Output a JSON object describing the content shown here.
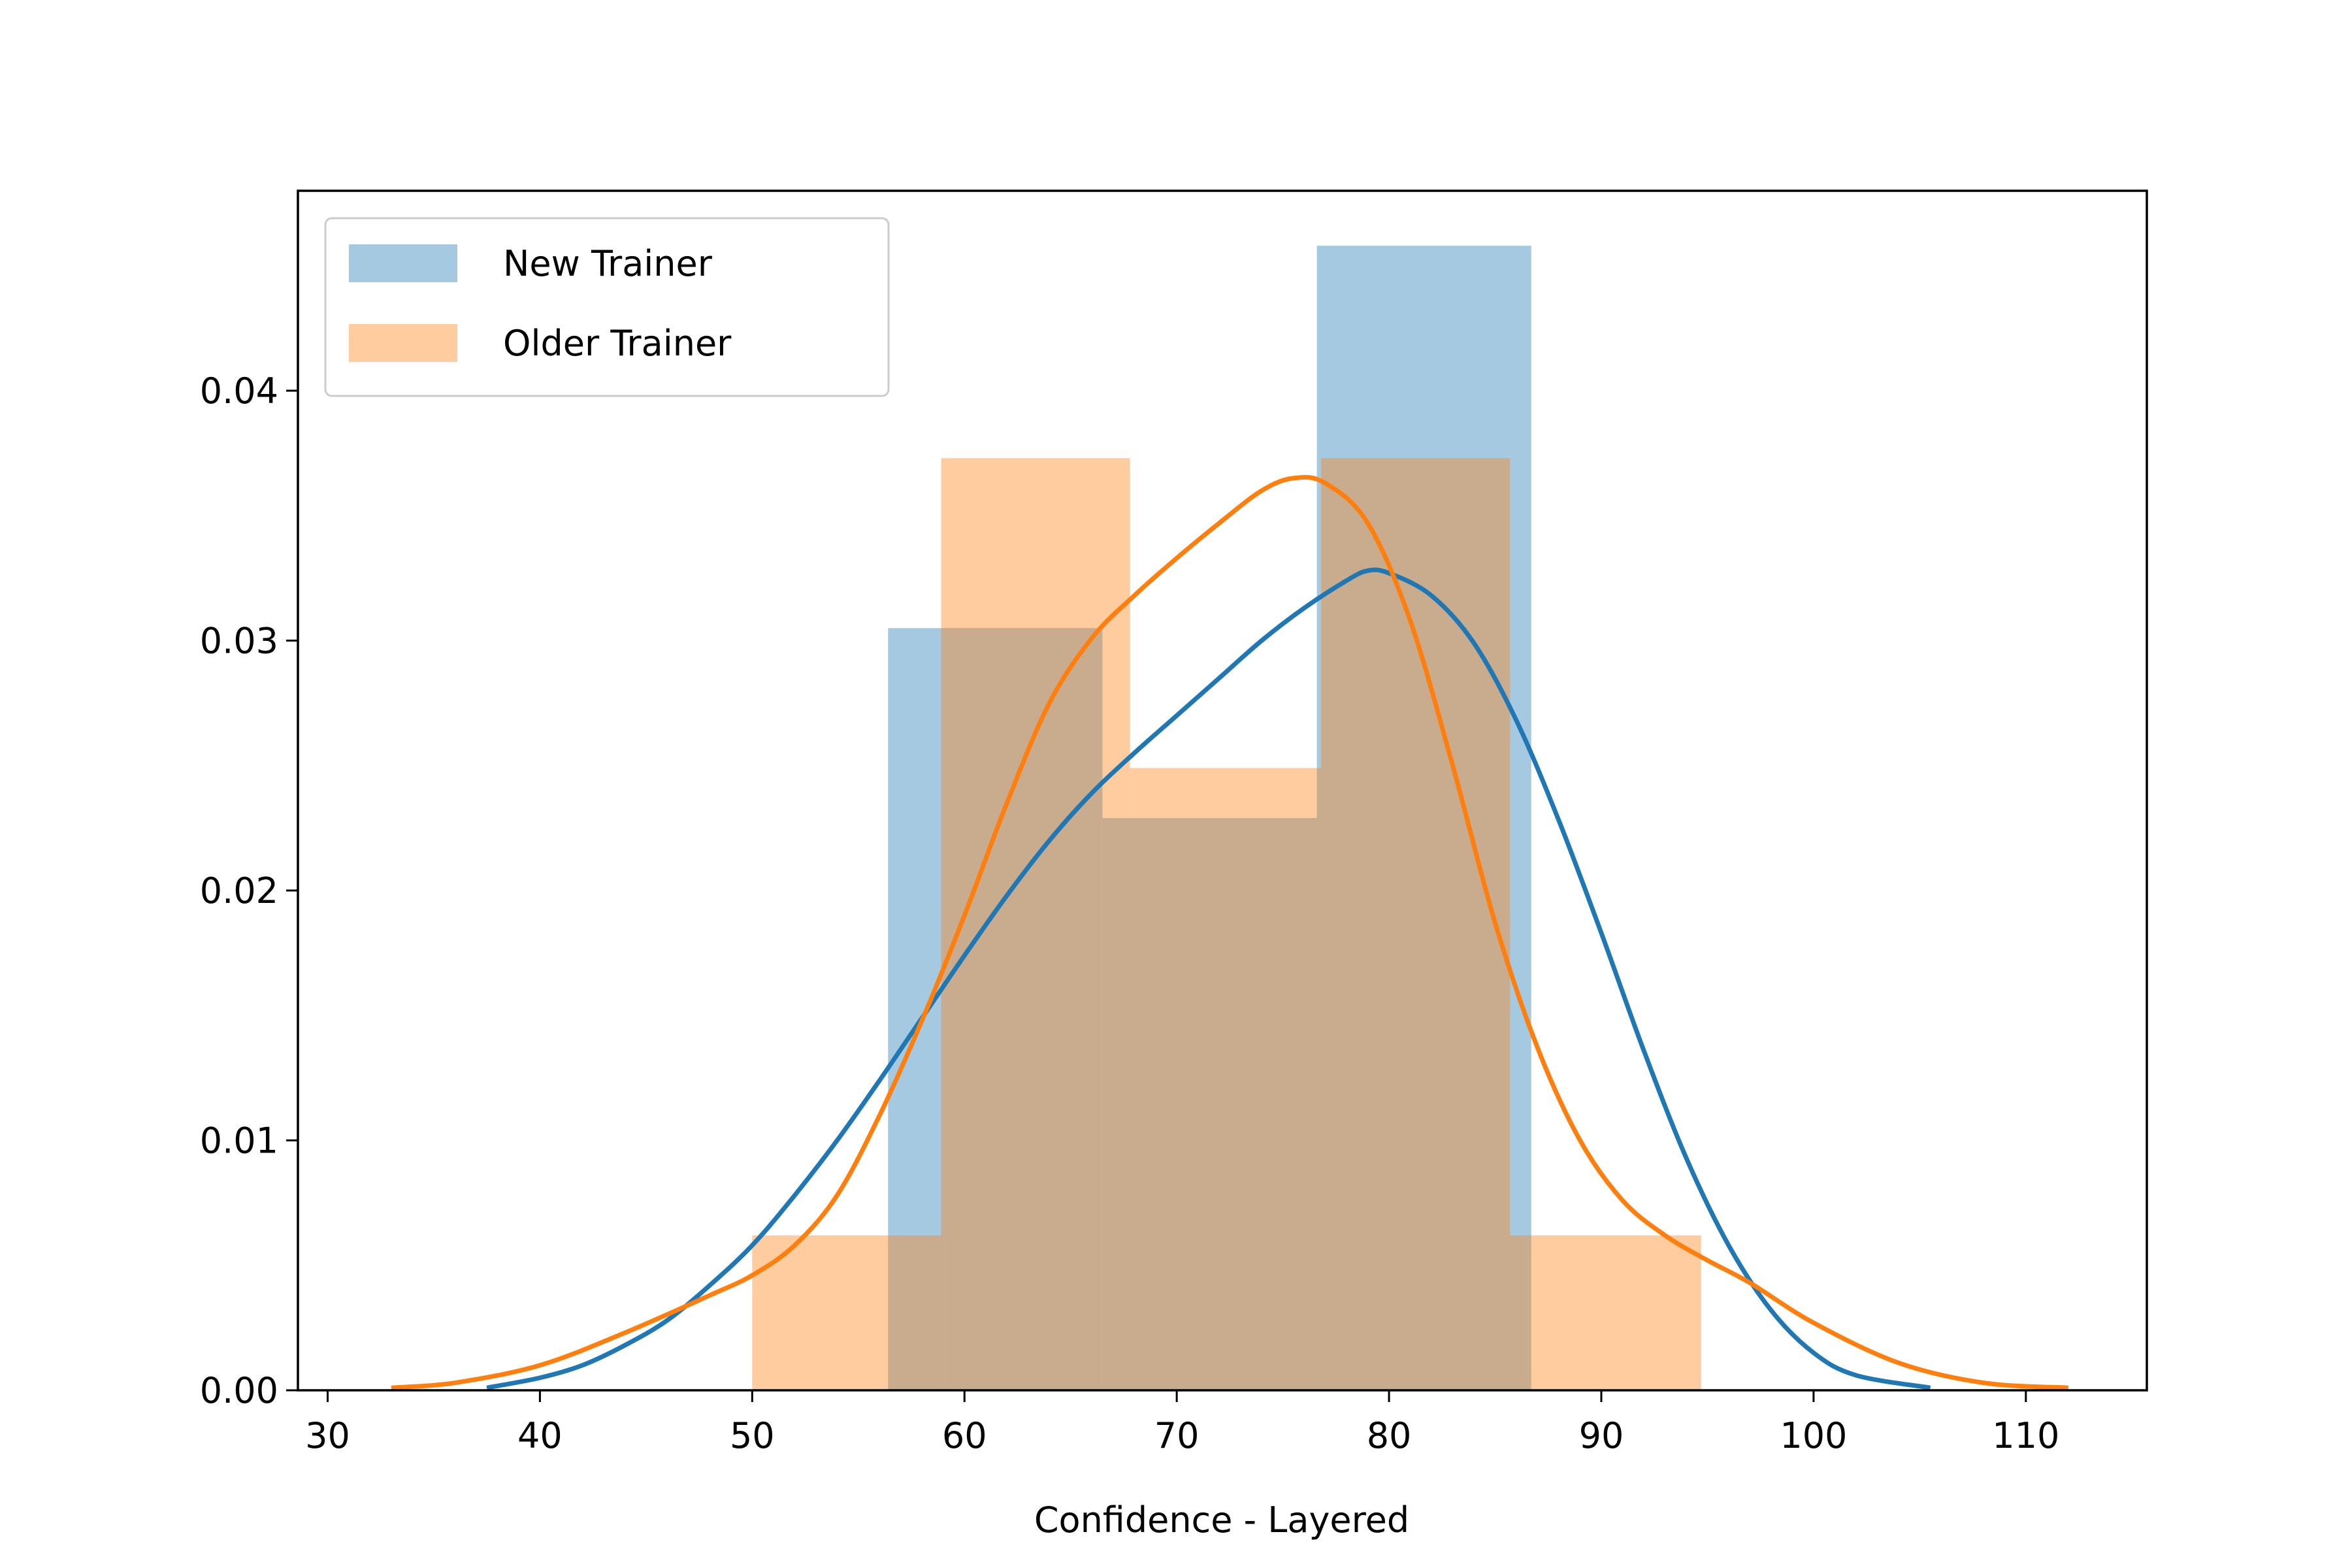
{
  "chart_data": {
    "type": "histogram",
    "title": "",
    "xlabel": "Confidence - Layered",
    "ylabel": "",
    "xlim": [
      28.6,
      115.7
    ],
    "ylim": [
      0,
      0.048
    ],
    "x_ticks": [
      30,
      40,
      50,
      60,
      70,
      80,
      90,
      100,
      110
    ],
    "y_ticks": [
      0.0,
      0.01,
      0.02,
      0.03,
      0.04
    ],
    "x_tick_labels": [
      "30",
      "40",
      "50",
      "60",
      "70",
      "80",
      "90",
      "100",
      "110"
    ],
    "y_tick_labels": [
      "0.00",
      "0.01",
      "0.02",
      "0.03",
      "0.04"
    ],
    "legend_position": "top-left",
    "grid": false,
    "series": [
      {
        "name": "New Trainer",
        "color": "#1f77b4",
        "bins": [
          {
            "x0": 56.4,
            "x1": 66.5,
            "density": 0.0305
          },
          {
            "x0": 66.5,
            "x1": 76.6,
            "density": 0.0229
          },
          {
            "x0": 76.6,
            "x1": 86.7,
            "density": 0.0458
          }
        ],
        "kde": [
          [
            37.5,
            0.0001
          ],
          [
            40,
            0.0005
          ],
          [
            42,
            0.001
          ],
          [
            44,
            0.0018
          ],
          [
            46,
            0.0028
          ],
          [
            48,
            0.0042
          ],
          [
            50,
            0.0058
          ],
          [
            52,
            0.0078
          ],
          [
            54,
            0.01
          ],
          [
            56,
            0.0124
          ],
          [
            58,
            0.0149
          ],
          [
            60,
            0.0174
          ],
          [
            62,
            0.0198
          ],
          [
            64,
            0.022
          ],
          [
            66,
            0.0239
          ],
          [
            68,
            0.0255
          ],
          [
            70,
            0.027
          ],
          [
            72,
            0.0285
          ],
          [
            74,
            0.03
          ],
          [
            76,
            0.0313
          ],
          [
            78,
            0.0324
          ],
          [
            79,
            0.0328
          ],
          [
            80,
            0.0327
          ],
          [
            82,
            0.0318
          ],
          [
            84,
            0.0299
          ],
          [
            86,
            0.0268
          ],
          [
            88,
            0.0228
          ],
          [
            90,
            0.0183
          ],
          [
            92,
            0.0136
          ],
          [
            94,
            0.0093
          ],
          [
            96,
            0.0058
          ],
          [
            98,
            0.0032
          ],
          [
            100,
            0.0015
          ],
          [
            102,
            0.0006
          ],
          [
            105.5,
            0.0001
          ]
        ]
      },
      {
        "name": "Older Trainer",
        "color": "#ff7f0e",
        "bins": [
          {
            "x0": 50.0,
            "x1": 58.9,
            "density": 0.0062
          },
          {
            "x0": 58.9,
            "x1": 67.8,
            "density": 0.0373
          },
          {
            "x0": 67.8,
            "x1": 76.8,
            "density": 0.0249
          },
          {
            "x0": 76.8,
            "x1": 85.7,
            "density": 0.0373
          },
          {
            "x0": 85.7,
            "x1": 94.7,
            "density": 0.0062
          }
        ],
        "kde": [
          [
            33,
            0.0001
          ],
          [
            36,
            0.0003
          ],
          [
            40,
            0.001
          ],
          [
            44,
            0.0023
          ],
          [
            48,
            0.0038
          ],
          [
            50,
            0.0046
          ],
          [
            52,
            0.0058
          ],
          [
            54,
            0.0078
          ],
          [
            56,
            0.011
          ],
          [
            58,
            0.0148
          ],
          [
            60,
            0.019
          ],
          [
            62,
            0.0235
          ],
          [
            64,
            0.0275
          ],
          [
            66,
            0.0301
          ],
          [
            68,
            0.0318
          ],
          [
            70,
            0.0333
          ],
          [
            72,
            0.0347
          ],
          [
            74,
            0.036
          ],
          [
            75.5,
            0.0365
          ],
          [
            77,
            0.0363
          ],
          [
            79,
            0.0347
          ],
          [
            81,
            0.0308
          ],
          [
            83,
            0.025
          ],
          [
            85,
            0.0187
          ],
          [
            87,
            0.0137
          ],
          [
            89,
            0.01
          ],
          [
            91,
            0.0076
          ],
          [
            93,
            0.0062
          ],
          [
            95,
            0.0052
          ],
          [
            97,
            0.0043
          ],
          [
            100,
            0.0027
          ],
          [
            104,
            0.0011
          ],
          [
            108,
            0.0003
          ],
          [
            112,
            0.0001
          ]
        ]
      }
    ]
  }
}
